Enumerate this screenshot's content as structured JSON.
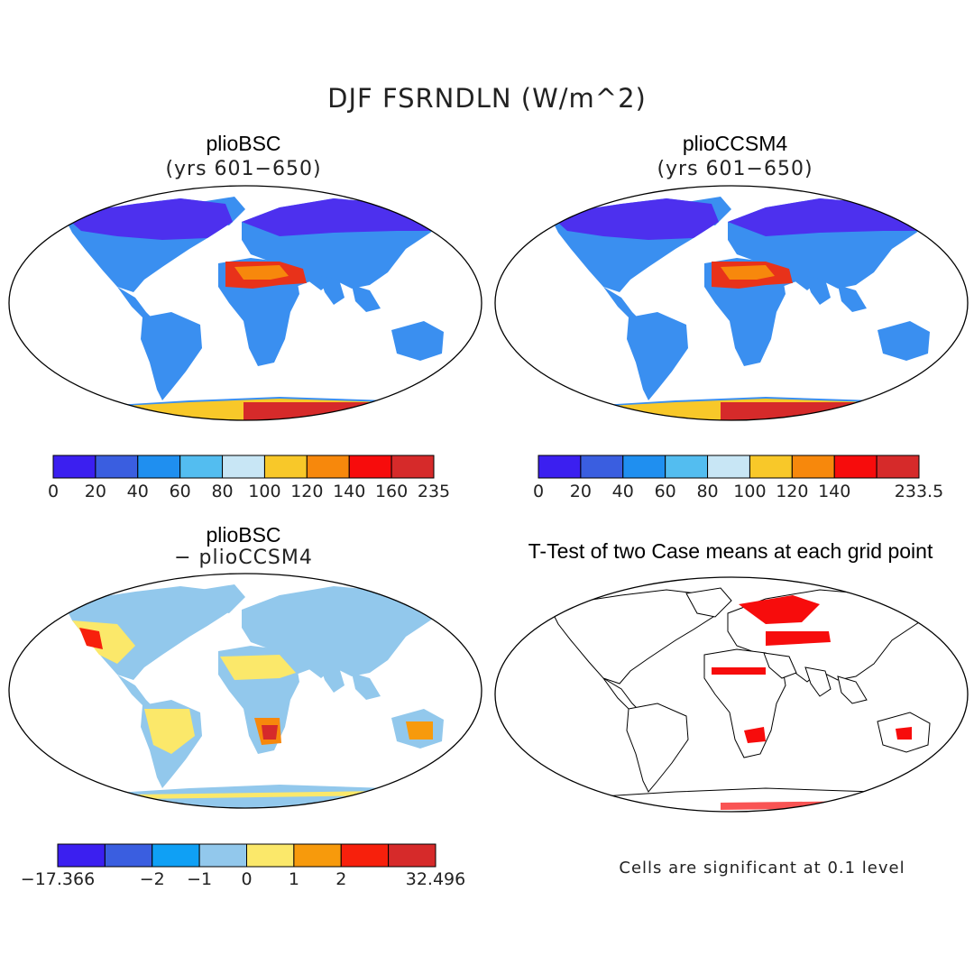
{
  "figure": {
    "main_title": "DJF FSRNDLN (W/m^2)"
  },
  "panels": [
    {
      "id": "plioBSC",
      "title": "plioBSC",
      "subtitle": "(yrs 601−650)",
      "colorbar": {
        "colors": [
          "#3b1ff0",
          "#3a5ee0",
          "#1f8ff0",
          "#53bdf0",
          "#c8e6f5",
          "#f8c829",
          "#f7880c",
          "#f70c0c",
          "#d62a2a"
        ],
        "tick_labels": [
          "0",
          "20",
          "40",
          "60",
          "80",
          "100",
          "120",
          "140",
          "160",
          "235"
        ]
      }
    },
    {
      "id": "plioCCSM4",
      "title": "plioCCSM4",
      "subtitle": "(yrs 601−650)",
      "colorbar": {
        "colors": [
          "#3b1ff0",
          "#3a5ee0",
          "#1f8ff0",
          "#53bdf0",
          "#c8e6f5",
          "#f8c829",
          "#f7880c",
          "#f70c0c",
          "#d62a2a"
        ],
        "tick_labels": [
          "0",
          "20",
          "40",
          "60",
          "80",
          "100",
          "120",
          "140",
          "",
          "233.5"
        ]
      }
    },
    {
      "id": "difference",
      "title": "plioBSC",
      "subtitle": "− plioCCSM4",
      "colorbar": {
        "colors": [
          "#3b1ff0",
          "#3a5ee0",
          "#0fa0f5",
          "#92c8ec",
          "#fbe86a",
          "#f79a0c",
          "#f7200c",
          "#d62a2a"
        ],
        "tick_labels": [
          "−17.366",
          "",
          "−2",
          "−1",
          "0",
          "1",
          "2",
          "",
          "32.496"
        ]
      }
    },
    {
      "id": "ttest",
      "title": "T-Test of two Case means at each grid point",
      "note": "Cells are significant at 0.1 level"
    }
  ]
}
